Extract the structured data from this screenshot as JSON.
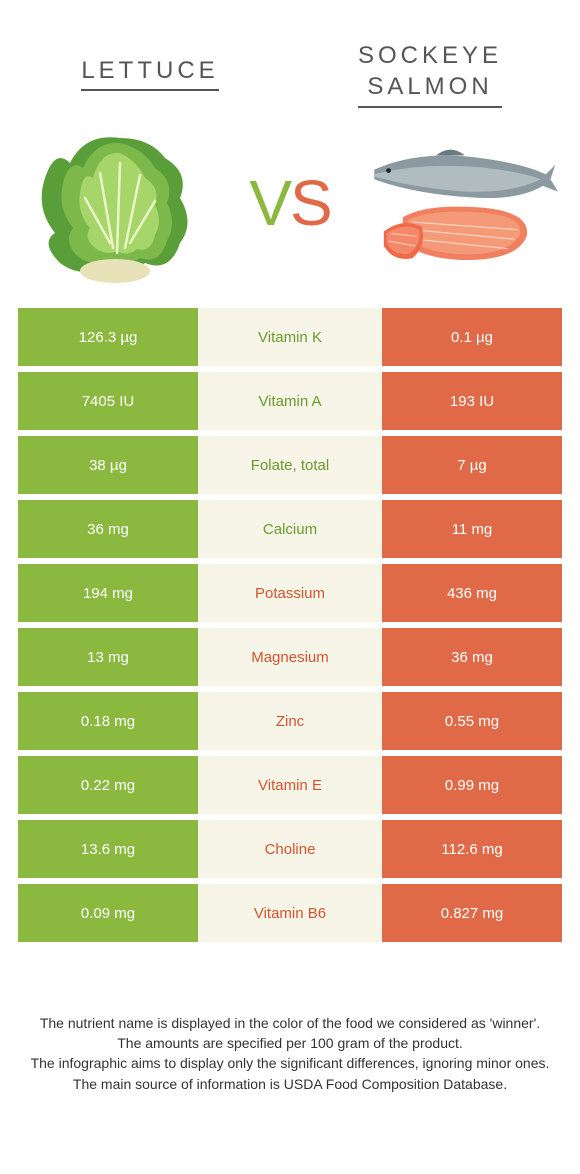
{
  "header": {
    "left_title": "Lettuce",
    "right_title_line1": "Sockeye",
    "right_title_line2": "salmon"
  },
  "vs": {
    "v": "V",
    "s": "S"
  },
  "colors": {
    "green": "#8bb93f",
    "orange": "#e06a47",
    "green_text": "#6a9a2f",
    "orange_text": "#d1552f",
    "mid_bg": "#f7f5e8"
  },
  "rows": [
    {
      "left": "126.3 µg",
      "label": "Vitamin K",
      "right": "0.1 µg",
      "winner": "green"
    },
    {
      "left": "7405 IU",
      "label": "Vitamin A",
      "right": "193 IU",
      "winner": "green"
    },
    {
      "left": "38 µg",
      "label": "Folate, total",
      "right": "7 µg",
      "winner": "green"
    },
    {
      "left": "36 mg",
      "label": "Calcium",
      "right": "11 mg",
      "winner": "green"
    },
    {
      "left": "194 mg",
      "label": "Potassium",
      "right": "436 mg",
      "winner": "orange"
    },
    {
      "left": "13 mg",
      "label": "Magnesium",
      "right": "36 mg",
      "winner": "orange"
    },
    {
      "left": "0.18 mg",
      "label": "Zinc",
      "right": "0.55 mg",
      "winner": "orange"
    },
    {
      "left": "0.22 mg",
      "label": "Vitamin E",
      "right": "0.99 mg",
      "winner": "orange"
    },
    {
      "left": "13.6 mg",
      "label": "Choline",
      "right": "112.6 mg",
      "winner": "orange"
    },
    {
      "left": "0.09 mg",
      "label": "Vitamin B6",
      "right": "0.827 mg",
      "winner": "orange"
    }
  ],
  "footer": {
    "line1": "The nutrient name is displayed in the color of the food we considered as 'winner'.",
    "line2": "The amounts are specified per 100 gram of the product.",
    "line3": "The infographic aims to display only the significant differences, ignoring minor ones.",
    "line4": "The main source of information is USDA Food Composition Database."
  }
}
